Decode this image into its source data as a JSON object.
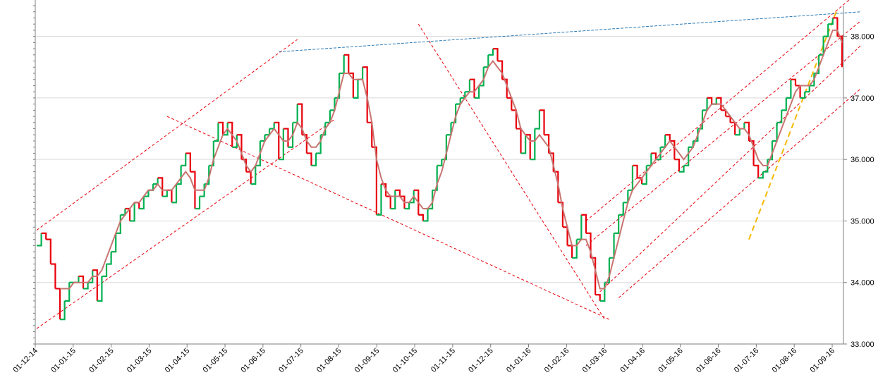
{
  "chart_data": {
    "type": "line",
    "title": "",
    "xlabel": "",
    "ylabel": "",
    "x_tick_labels": [
      "01-12-14",
      "01-01-15",
      "01-02-15",
      "01-03-15",
      "01-04-15",
      "01-05-15",
      "01-06-15",
      "01-07-15",
      "01-08-15",
      "01-09-15",
      "01-10-15",
      "01-11-15",
      "01-12-15",
      "01-01-16",
      "01-02-16",
      "01-03-16",
      "01-04-16",
      "01-05-16",
      "01-06-16",
      "01-07-16",
      "01-08-16",
      "01-09-16"
    ],
    "y_tick_labels": [
      "33.000",
      "34.000",
      "35.000",
      "36.000",
      "37.000",
      "38.000"
    ],
    "ylim": [
      33.0,
      38.5
    ],
    "grid": true,
    "series": [
      {
        "values": [
          34.6,
          34.8,
          34.7,
          34.3,
          33.9,
          33.4,
          33.7,
          34.0,
          34.0,
          34.1,
          33.9,
          34.0,
          34.2,
          33.7,
          34.1,
          34.3,
          34.5,
          34.8,
          35.1,
          35.2,
          35.0,
          35.3,
          35.2,
          35.4,
          35.5,
          35.6,
          35.7,
          35.4,
          35.5,
          35.3,
          35.6,
          35.9,
          36.1,
          35.8,
          35.2,
          35.4,
          35.6,
          35.9,
          36.3,
          36.6,
          36.4,
          36.6,
          36.2,
          36.4,
          36.0,
          35.8,
          35.6,
          35.9,
          36.3,
          36.4,
          36.5,
          36.6,
          36.0,
          36.5,
          36.2,
          36.6,
          36.9,
          36.4,
          36.1,
          35.9,
          36.1,
          36.4,
          36.6,
          36.8,
          37.0,
          37.4,
          37.7,
          37.4,
          37.0,
          37.3,
          37.5,
          36.6,
          36.2,
          35.1,
          35.6,
          35.4,
          35.2,
          35.5,
          35.4,
          35.2,
          35.3,
          35.5,
          35.1,
          35.0,
          35.2,
          35.5,
          35.9,
          36.0,
          36.4,
          36.6,
          36.9,
          37.0,
          37.1,
          37.3,
          37.0,
          37.2,
          37.5,
          37.7,
          37.8,
          37.6,
          37.3,
          37.0,
          36.8,
          36.5,
          36.1,
          36.4,
          36.0,
          36.5,
          36.8,
          36.4,
          36.1,
          35.8,
          35.3,
          34.9,
          34.6,
          34.4,
          34.7,
          35.1,
          34.8,
          34.4,
          33.8,
          33.7,
          34.0,
          34.4,
          34.8,
          35.1,
          35.3,
          35.5,
          35.9,
          35.7,
          35.6,
          35.9,
          36.1,
          36.0,
          36.2,
          36.4,
          36.3,
          36.0,
          35.8,
          35.9,
          36.2,
          36.3,
          36.5,
          36.8,
          37.0,
          36.9,
          37.0,
          36.8,
          36.7,
          36.6,
          36.4,
          36.5,
          36.6,
          36.3,
          35.9,
          35.7,
          35.8,
          36.0,
          36.3,
          36.6,
          36.8,
          37.0,
          37.3,
          37.2,
          37.0,
          37.1,
          37.2,
          37.4,
          37.7,
          38.0,
          38.2,
          38.3,
          38.0,
          37.5
        ]
      },
      {
        "name_hidden": "",
        "values": [
          null,
          null,
          null,
          null,
          null,
          33.9,
          33.9,
          33.9,
          34.0,
          34.0,
          34.0,
          34.0,
          34.1,
          34.1,
          34.2,
          34.4,
          34.6,
          34.8,
          35.0,
          35.1,
          35.2,
          35.3,
          35.3,
          35.4,
          35.5,
          35.5,
          35.6,
          35.5,
          35.5,
          35.5,
          35.6,
          35.7,
          35.8,
          35.7,
          35.5,
          35.5,
          35.5,
          35.7,
          36.0,
          36.2,
          36.4,
          36.5,
          36.4,
          36.3,
          36.1,
          35.9,
          35.8,
          35.9,
          36.1,
          36.3,
          36.4,
          36.5,
          36.4,
          36.3,
          36.3,
          36.4,
          36.6,
          36.5,
          36.3,
          36.2,
          36.2,
          36.3,
          36.5,
          36.6,
          36.8,
          37.1,
          37.4,
          37.4,
          37.3,
          37.3,
          37.3,
          37.0,
          36.6,
          36.0,
          35.7,
          35.5,
          35.4,
          35.4,
          35.4,
          35.3,
          35.3,
          35.4,
          35.3,
          35.2,
          35.2,
          35.3,
          35.6,
          35.8,
          36.1,
          36.4,
          36.7,
          36.9,
          37.0,
          37.1,
          37.1,
          37.2,
          37.3,
          37.5,
          37.6,
          37.5,
          37.4,
          37.2,
          37.0,
          36.8,
          36.5,
          36.4,
          36.3,
          36.3,
          36.4,
          36.3,
          36.2,
          35.9,
          35.6,
          35.2,
          34.9,
          34.6,
          34.6,
          34.7,
          34.7,
          34.5,
          34.2,
          33.9,
          33.9,
          34.1,
          34.4,
          34.7,
          35.0,
          35.3,
          35.5,
          35.6,
          35.7,
          35.8,
          35.9,
          36.0,
          36.1,
          36.2,
          36.3,
          36.2,
          36.1,
          36.0,
          36.1,
          36.2,
          36.4,
          36.6,
          36.8,
          36.9,
          36.9,
          36.9,
          36.8,
          36.7,
          36.6,
          36.5,
          36.5,
          36.4,
          36.2,
          36.0,
          35.9,
          35.9,
          36.1,
          36.3,
          36.5,
          36.7,
          36.9,
          37.1,
          37.2,
          37.2,
          37.2,
          37.3,
          37.5,
          37.7,
          37.9,
          38.1,
          38.1,
          37.9
        ]
      }
    ],
    "colors": {
      "up": "#00b050",
      "down": "#e8000b",
      "moving_average": "#c87470",
      "channel_lines": "#e8000b",
      "resistance_line": "#2a7ab8",
      "support_line": "#f5b800",
      "grid": "#d9d9d9",
      "axis": "#7f7f7f"
    }
  }
}
